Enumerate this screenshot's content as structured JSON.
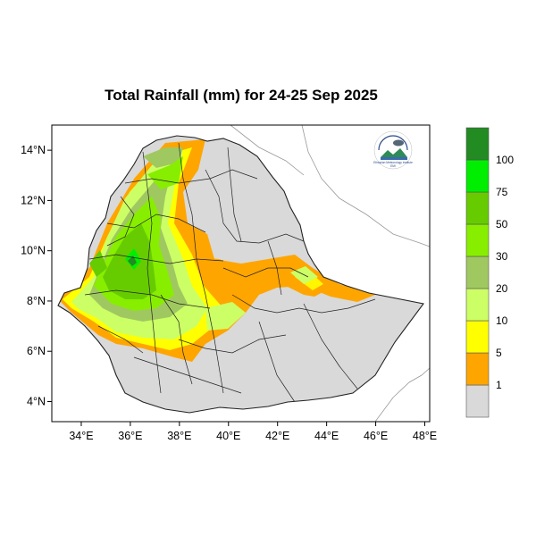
{
  "map": {
    "title": "Total Rainfall (mm) for 24-25 Sep 2025",
    "lon_range": [
      32.8,
      48.2
    ],
    "lat_range": [
      3.2,
      15.0
    ],
    "x_ticks": [
      {
        "value": 34,
        "label": "34°E"
      },
      {
        "value": 36,
        "label": "36°E"
      },
      {
        "value": 38,
        "label": "38°E"
      },
      {
        "value": 40,
        "label": "40°E"
      },
      {
        "value": 42,
        "label": "42°E"
      },
      {
        "value": 44,
        "label": "44°E"
      },
      {
        "value": 46,
        "label": "46°E"
      },
      {
        "value": 48,
        "label": "48°E"
      }
    ],
    "y_ticks": [
      {
        "value": 4,
        "label": "4°N"
      },
      {
        "value": 6,
        "label": "6°N"
      },
      {
        "value": 8,
        "label": "8°N"
      },
      {
        "value": 10,
        "label": "10°N"
      },
      {
        "value": 12,
        "label": "12°N"
      },
      {
        "value": 14,
        "label": "14°N"
      }
    ],
    "colors": {
      "lt1": "#d9d9d9",
      "r1_5": "#ffa500",
      "r5_10": "#ffff00",
      "r10_20": "#ccff66",
      "r20_30": "#a0c860",
      "r30_50": "#88ee00",
      "r50_75": "#66cc00",
      "r75_100": "#00ee00",
      "gt100": "#228b22"
    }
  },
  "legend": {
    "bins": [
      {
        "color": "#d9d9d9"
      },
      {
        "color": "#ffa500"
      },
      {
        "color": "#ffff00"
      },
      {
        "color": "#ccff66"
      },
      {
        "color": "#a0c860"
      },
      {
        "color": "#88ee00"
      },
      {
        "color": "#66cc00"
      },
      {
        "color": "#00ee00"
      },
      {
        "color": "#228b22"
      }
    ],
    "labels": [
      "1",
      "5",
      "10",
      "20",
      "30",
      "50",
      "75",
      "100"
    ]
  },
  "logo": {
    "org_text": "Ethiopian Meteorology Institute",
    "short": "EMI"
  }
}
